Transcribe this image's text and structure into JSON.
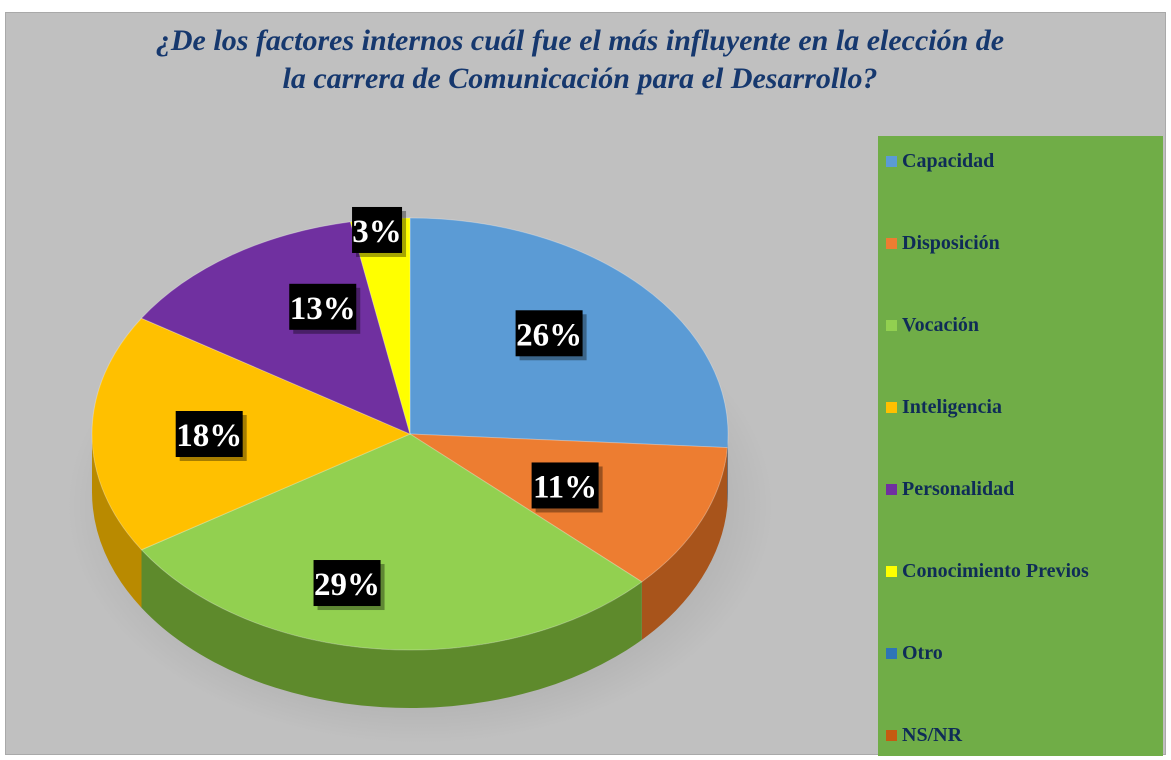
{
  "chart_data": {
    "type": "pie",
    "title": "¿De los factores internos cuál fue el más influyente en la elección de la carrera de Comunicación para el Desarrollo?",
    "title_lines": [
      "¿De los factores internos cuál fue el más influyente en la elección de",
      "la carrera de Comunicación para el Desarrollo?"
    ],
    "legend_position": "right",
    "slices": [
      {
        "name": "Capacidad",
        "value": 26,
        "label": "26%",
        "color": "#5b9bd5",
        "side": "#3d6f9e"
      },
      {
        "name": "Disposición",
        "value": 11,
        "label": "11%",
        "color": "#ed7d31",
        "side": "#a8541b"
      },
      {
        "name": "Vocación",
        "value": 29,
        "label": "29%",
        "color": "#92d050",
        "side": "#5e8a2c"
      },
      {
        "name": "Inteligencia",
        "value": 18,
        "label": "18%",
        "color": "#ffc000",
        "side": "#b98a00"
      },
      {
        "name": "Personalidad",
        "value": 13,
        "label": "13%",
        "color": "#7030a0",
        "side": "#4b1e6c"
      },
      {
        "name": "Conocimiento Previos",
        "value": 3,
        "label": "3%",
        "color": "#ffff00",
        "side": "#bdbd00"
      },
      {
        "name": "Otro",
        "value": 0,
        "label": "",
        "color": "#2e75b6",
        "side": "#1f5080"
      },
      {
        "name": "NS/NR",
        "value": 0,
        "label": "",
        "color": "#c55a11",
        "side": "#8a3e0b"
      }
    ]
  }
}
